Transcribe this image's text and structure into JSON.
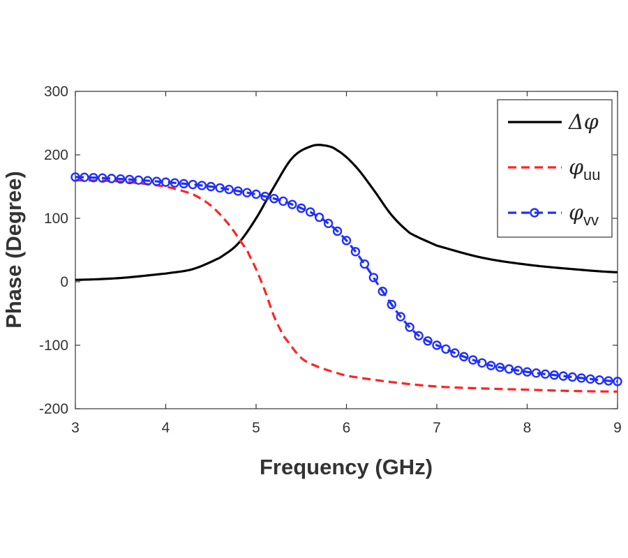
{
  "chart_data": {
    "type": "line",
    "title": "",
    "xlabel": "Frequency (GHz)",
    "ylabel": "Phase (Degree)",
    "xlim": [
      3,
      9
    ],
    "ylim": [
      -200,
      300
    ],
    "x_ticks": [
      "3",
      "4",
      "5",
      "6",
      "7",
      "8",
      "9"
    ],
    "y_ticks": [
      "-200",
      "-100",
      "0",
      "100",
      "200",
      "300"
    ],
    "legend_position": "top-right",
    "series": [
      {
        "name": "Δφ",
        "legend_main": "Δφ",
        "legend_sub": "",
        "color": "#000000",
        "style": "solid",
        "markers": false,
        "x": [
          3,
          3.5,
          4,
          4.3,
          4.6,
          4.8,
          5.0,
          5.2,
          5.4,
          5.6,
          5.75,
          5.9,
          6.1,
          6.3,
          6.5,
          6.7,
          7.0,
          7.5,
          8.0,
          8.5,
          9.0
        ],
        "y": [
          3,
          6,
          13,
          20,
          38,
          60,
          100,
          150,
          195,
          213,
          215,
          207,
          182,
          145,
          105,
          77,
          57,
          38,
          27,
          20,
          15
        ]
      },
      {
        "name": "φuu",
        "legend_main": "φ",
        "legend_sub": "uu",
        "color": "#ff2222",
        "style": "dashed",
        "markers": false,
        "x": [
          3,
          3.5,
          4.0,
          4.3,
          4.5,
          4.7,
          4.9,
          5.0,
          5.1,
          5.2,
          5.3,
          5.5,
          5.7,
          6.0,
          6.5,
          7.0,
          7.5,
          8.0,
          8.5,
          9.0
        ],
        "y": [
          160,
          158,
          150,
          138,
          120,
          90,
          50,
          20,
          -15,
          -55,
          -85,
          -120,
          -135,
          -148,
          -158,
          -165,
          -168,
          -170,
          -172,
          -173
        ]
      },
      {
        "name": "φvv",
        "legend_main": "φ",
        "legend_sub": "vv",
        "color": "#1f2fff",
        "style": "dashed",
        "markers": true,
        "x": [
          3,
          3.5,
          4.0,
          4.5,
          5.0,
          5.3,
          5.6,
          5.8,
          6.0,
          6.2,
          6.4,
          6.6,
          6.8,
          7.0,
          7.3,
          7.6,
          8.0,
          8.5,
          9.0
        ],
        "y": [
          165,
          162,
          157,
          150,
          138,
          127,
          110,
          92,
          65,
          28,
          -15,
          -55,
          -85,
          -100,
          -118,
          -132,
          -142,
          -150,
          -157
        ]
      }
    ]
  }
}
